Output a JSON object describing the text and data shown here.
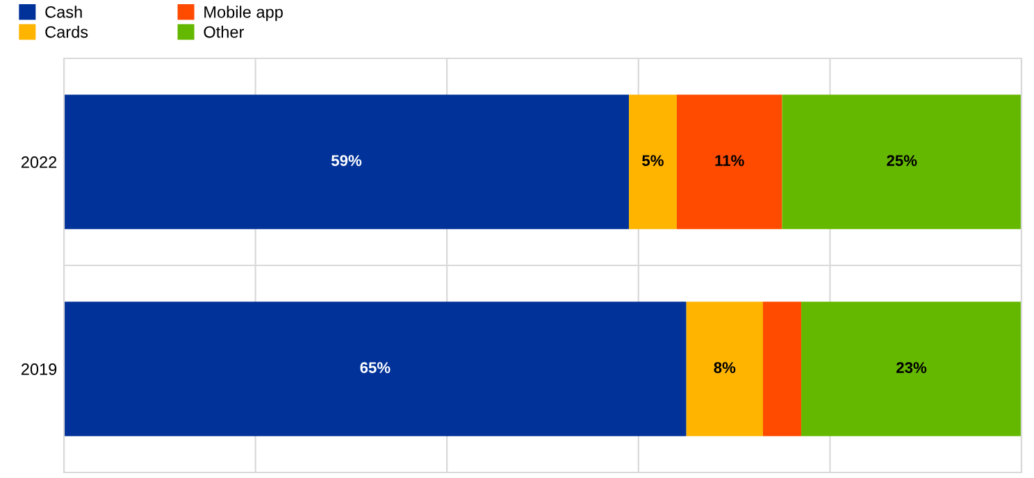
{
  "chart_data": {
    "type": "bar",
    "orientation": "horizontal",
    "stacked": true,
    "categories": [
      "2022",
      "2019"
    ],
    "series": [
      {
        "name": "Cash",
        "color": "#003299",
        "values": [
          59,
          65
        ],
        "value_labels": [
          "59%",
          "65%"
        ]
      },
      {
        "name": "Cards",
        "color": "#ffb400",
        "values": [
          5,
          8
        ],
        "value_labels": [
          "5%",
          "8%"
        ]
      },
      {
        "name": "Mobile app",
        "color": "#ff4b00",
        "values": [
          11,
          4
        ],
        "value_labels": [
          "11%",
          null
        ]
      },
      {
        "name": "Other",
        "color": "#65b800",
        "values": [
          25,
          23
        ],
        "value_labels": [
          "25%",
          "23%"
        ]
      }
    ],
    "xlim": [
      0,
      100
    ],
    "xticks": [
      {
        "value": 0,
        "label": null
      },
      {
        "value": 20,
        "label": null
      },
      {
        "value": 40,
        "label": null
      },
      {
        "value": 60,
        "label": null
      },
      {
        "value": 80,
        "label": null
      },
      {
        "value": 100,
        "label": null
      }
    ],
    "tick_labels": "y",
    "grid": true,
    "legend": "top left"
  }
}
